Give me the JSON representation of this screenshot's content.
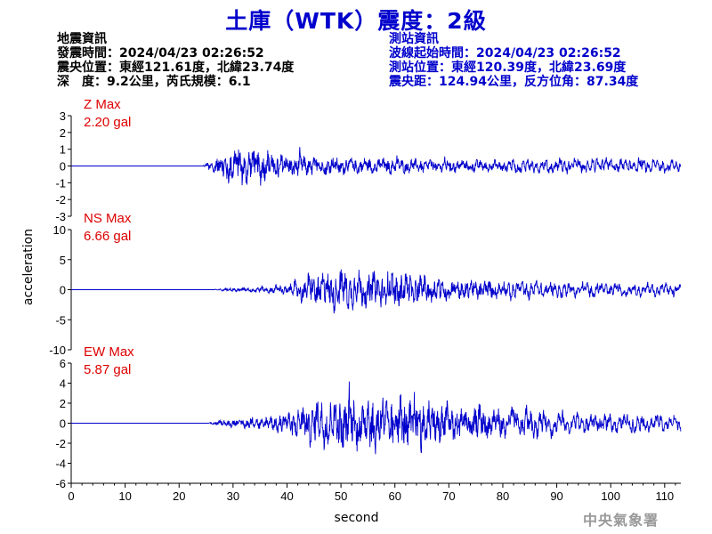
{
  "title": "土庫（WTK）震度：2級",
  "quake_info": {
    "heading": "地震資訊",
    "origin_time": "發震時間：2024/04/23 02:26:52",
    "epicenter": "震央位置：東經121.61度，北緯23.74度",
    "depth_magnitude": "深　度：9.2公里，芮氏規模：6.1"
  },
  "station_info": {
    "heading": "測站資訊",
    "wave_start": "波線起始時間：2024/04/23 02:26:52",
    "location": "測站位置：東經120.39度，北緯23.69度",
    "distance": "震央距：124.94公里，反方位角：87.34度"
  },
  "watermark": "中央氣象署",
  "chart_data": {
    "type": "line",
    "xlabel": "second",
    "ylabel": "acceleration",
    "xlim": [
      0,
      113
    ],
    "x_ticks": [
      0,
      10,
      20,
      30,
      40,
      50,
      60,
      70,
      80,
      90,
      100,
      110
    ],
    "line_color": "#0000cc",
    "panels": [
      {
        "name": "Z",
        "max_label": "Z Max",
        "max_value": "2.20 gal",
        "ylim": [
          -3,
          3
        ],
        "y_ticks": [
          -3,
          -2,
          -1,
          0,
          1,
          2,
          3
        ],
        "onset": 24.5,
        "envelope": [
          [
            0,
            0
          ],
          [
            24,
            0
          ],
          [
            25,
            0.3
          ],
          [
            27,
            1.0
          ],
          [
            29,
            1.7
          ],
          [
            31,
            1.9
          ],
          [
            33,
            1.8
          ],
          [
            36,
            1.6
          ],
          [
            40,
            1.2
          ],
          [
            45,
            0.9
          ],
          [
            55,
            0.75
          ],
          [
            65,
            0.65
          ],
          [
            80,
            0.55
          ],
          [
            90,
            0.6
          ],
          [
            100,
            0.65
          ],
          [
            113,
            0.5
          ]
        ]
      },
      {
        "name": "NS",
        "max_label": "NS Max",
        "max_value": "6.66 gal",
        "ylim": [
          -10,
          10
        ],
        "y_ticks": [
          -10,
          -5,
          0,
          5,
          10
        ],
        "onset": 26.5,
        "envelope": [
          [
            0,
            0
          ],
          [
            26,
            0
          ],
          [
            28,
            0.4
          ],
          [
            35,
            0.8
          ],
          [
            40,
            1.5
          ],
          [
            43,
            3.5
          ],
          [
            47,
            5.5
          ],
          [
            52,
            5.2
          ],
          [
            56,
            4.8
          ],
          [
            60,
            5.0
          ],
          [
            65,
            4.0
          ],
          [
            70,
            3.0
          ],
          [
            80,
            2.2
          ],
          [
            90,
            1.8
          ],
          [
            100,
            1.5
          ],
          [
            113,
            1.3
          ]
        ]
      },
      {
        "name": "EW",
        "max_label": "EW Max",
        "max_value": "5.87 gal",
        "ylim": [
          -6,
          6
        ],
        "y_ticks": [
          -6,
          -4,
          -2,
          0,
          2,
          4,
          6
        ],
        "onset": 25.5,
        "envelope": [
          [
            0,
            0
          ],
          [
            25,
            0
          ],
          [
            28,
            0.5
          ],
          [
            33,
            0.9
          ],
          [
            38,
            1.4
          ],
          [
            42,
            2.5
          ],
          [
            46,
            3.8
          ],
          [
            50,
            4.3
          ],
          [
            55,
            4.6
          ],
          [
            60,
            4.7
          ],
          [
            64,
            4.4
          ],
          [
            70,
            3.4
          ],
          [
            80,
            2.3
          ],
          [
            90,
            1.6
          ],
          [
            100,
            1.3
          ],
          [
            113,
            1.1
          ]
        ]
      }
    ]
  }
}
